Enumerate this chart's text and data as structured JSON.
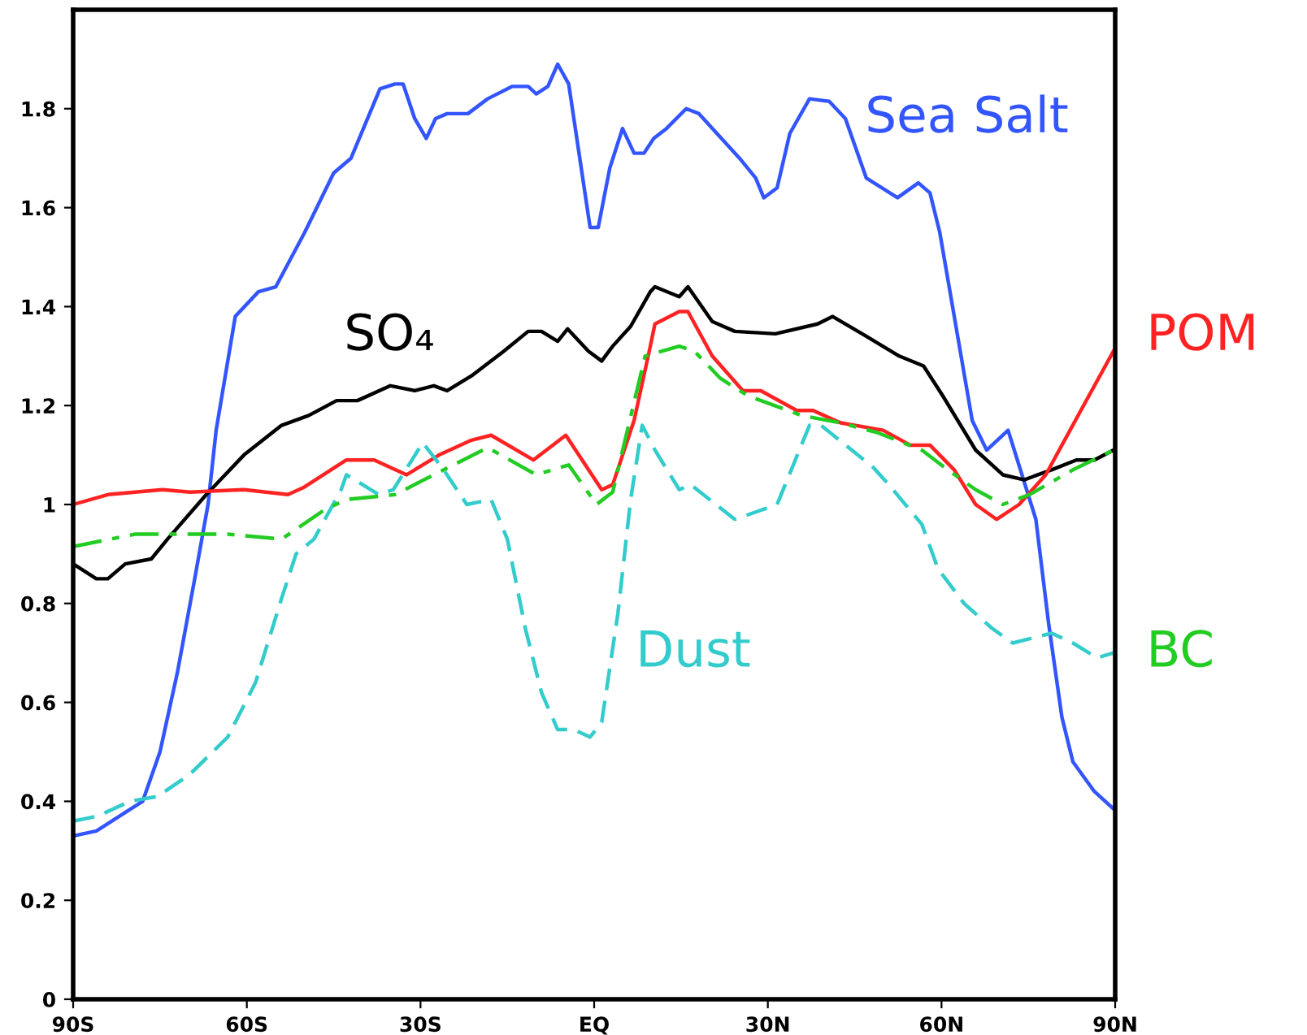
{
  "chart_data": {
    "type": "line",
    "xlim": [
      -90,
      90
    ],
    "ylim": [
      0,
      2
    ],
    "xticks": [
      {
        "value": -90,
        "label": "90S"
      },
      {
        "value": -60,
        "label": "60S"
      },
      {
        "value": -30,
        "label": "30S"
      },
      {
        "value": 0,
        "label": "EQ"
      },
      {
        "value": 30,
        "label": "30N"
      },
      {
        "value": 60,
        "label": "60N"
      },
      {
        "value": 90,
        "label": "90N"
      }
    ],
    "yticks": [
      0,
      0.2,
      0.4,
      0.6,
      0.8,
      1,
      1.2,
      1.4,
      1.6,
      1.8
    ],
    "grid": false,
    "legend": false,
    "series": [
      {
        "name": "Sea Salt",
        "color": "#3355ff",
        "line_style": "solid",
        "x": [
          -90,
          -86,
          -82,
          -78,
          -75,
          -72,
          -69,
          -66.7,
          -65.3,
          -62,
          -58,
          -55,
          -50,
          -45,
          -42,
          -37,
          -34.4,
          -33,
          -31,
          -29,
          -27.4,
          -25.4,
          -21.8,
          -18.4,
          -14.2,
          -11.4,
          -10,
          -8,
          -6.3,
          -4.4,
          -0.7,
          0.7,
          2.7,
          4.9,
          6.9,
          8.6,
          10.3,
          12.5,
          15.9,
          18.1,
          25.1,
          27.9,
          29.3,
          31.6,
          33.8,
          37.2,
          40.6,
          43.4,
          47,
          52.4,
          56,
          58,
          59.7,
          65.3,
          67.8,
          71.5,
          76.3,
          78.5,
          80.8,
          82.7,
          86.4,
          89.7
        ],
        "values": [
          0.33,
          0.34,
          0.37,
          0.4,
          0.5,
          0.66,
          0.85,
          1.0,
          1.15,
          1.38,
          1.43,
          1.44,
          1.55,
          1.67,
          1.7,
          1.84,
          1.85,
          1.85,
          1.78,
          1.74,
          1.78,
          1.79,
          1.79,
          1.82,
          1.845,
          1.845,
          1.83,
          1.845,
          1.89,
          1.85,
          1.56,
          1.56,
          1.68,
          1.76,
          1.71,
          1.71,
          1.74,
          1.76,
          1.8,
          1.79,
          1.7,
          1.66,
          1.62,
          1.64,
          1.75,
          1.82,
          1.815,
          1.78,
          1.66,
          1.62,
          1.65,
          1.63,
          1.55,
          1.17,
          1.11,
          1.15,
          0.97,
          0.76,
          0.57,
          0.48,
          0.42,
          0.385
        ]
      },
      {
        "name": "SO₄",
        "color": "#000000",
        "line_style": "solid",
        "x": [
          -90,
          -86,
          -84,
          -81,
          -76.5,
          -73.7,
          -67,
          -60.5,
          -54,
          -49.3,
          -44.5,
          -40.9,
          -35.2,
          -31,
          -27.7,
          -25.4,
          -21.2,
          -15.6,
          -11.4,
          -9.1,
          -6.3,
          -4.6,
          -1,
          1.3,
          3.2,
          6.3,
          9.7,
          10.5,
          14.7,
          16.2,
          20.4,
          24.3,
          31.3,
          38.6,
          41.2,
          47,
          52.7,
          56.9,
          60.2,
          65.9,
          70.6,
          74.3,
          79,
          83.3,
          86.4,
          89.7
        ],
        "values": [
          0.88,
          0.85,
          0.85,
          0.88,
          0.89,
          0.93,
          1.02,
          1.1,
          1.16,
          1.18,
          1.21,
          1.21,
          1.24,
          1.23,
          1.24,
          1.23,
          1.26,
          1.31,
          1.35,
          1.35,
          1.33,
          1.355,
          1.31,
          1.29,
          1.32,
          1.36,
          1.43,
          1.44,
          1.42,
          1.44,
          1.37,
          1.35,
          1.345,
          1.365,
          1.38,
          1.34,
          1.3,
          1.28,
          1.22,
          1.11,
          1.06,
          1.05,
          1.07,
          1.09,
          1.09,
          1.11
        ]
      },
      {
        "name": "POM",
        "color": "#ff2222",
        "line_style": "solid",
        "x": [
          -90,
          -84,
          -74.6,
          -69.8,
          -60.5,
          -52.9,
          -50.1,
          -42.8,
          -38,
          -32.4,
          -26.8,
          -21.2,
          -17.8,
          -10.5,
          -4.9,
          1.3,
          3.2,
          6.9,
          9.7,
          10.5,
          14.7,
          16.2,
          20.4,
          25.7,
          28.8,
          35,
          37.8,
          42.6,
          49.9,
          54.6,
          58,
          62.2,
          65.9,
          69.5,
          73.4,
          78,
          83.6,
          89.7
        ],
        "values": [
          1.0,
          1.02,
          1.03,
          1.025,
          1.03,
          1.02,
          1.035,
          1.09,
          1.09,
          1.06,
          1.1,
          1.13,
          1.14,
          1.09,
          1.14,
          1.03,
          1.04,
          1.17,
          1.32,
          1.365,
          1.39,
          1.39,
          1.3,
          1.23,
          1.23,
          1.19,
          1.19,
          1.165,
          1.15,
          1.12,
          1.12,
          1.07,
          1.0,
          0.97,
          1.0,
          1.06,
          1.18,
          1.31
        ]
      },
      {
        "name": "Dust",
        "color": "#33cccc",
        "line_style": "dashed",
        "x": [
          -90,
          -85.8,
          -80.2,
          -75.4,
          -69.8,
          -63.3,
          -58.5,
          -54,
          -51.5,
          -48.4,
          -43.7,
          -42.8,
          -37.2,
          -34.7,
          -29.6,
          -26,
          -22,
          -17.8,
          -15,
          -11.9,
          -9.1,
          -6.3,
          -3.5,
          -0.7,
          1.3,
          4.1,
          6.3,
          8.3,
          10.5,
          14.7,
          16.7,
          24.3,
          31.6,
          37.2,
          39.2,
          48.2,
          50.9,
          56.6,
          59.4,
          63.9,
          68.7,
          72.3,
          79,
          82.7,
          86.9,
          89.7
        ],
        "values": [
          0.36,
          0.37,
          0.4,
          0.41,
          0.455,
          0.53,
          0.64,
          0.81,
          0.9,
          0.93,
          1.03,
          1.06,
          1.02,
          1.03,
          1.125,
          1.07,
          1.0,
          1.01,
          0.93,
          0.75,
          0.62,
          0.545,
          0.545,
          0.53,
          0.56,
          0.78,
          1.01,
          1.16,
          1.11,
          1.03,
          1.04,
          0.97,
          1.0,
          1.16,
          1.16,
          1.075,
          1.04,
          0.96,
          0.87,
          0.8,
          0.75,
          0.72,
          0.74,
          0.72,
          0.69,
          0.7
        ]
      },
      {
        "name": "BC",
        "color": "#22cc22",
        "line_style": "dashdot",
        "x": [
          -90,
          -79.3,
          -63.3,
          -54,
          -46.5,
          -42.8,
          -34.4,
          -27.7,
          -18.4,
          -10,
          -4.4,
          0.4,
          3.2,
          8.8,
          14.7,
          17.3,
          21.8,
          26.5,
          35.8,
          42.6,
          49,
          56.6,
          61.1,
          65.9,
          70.6,
          75.2,
          82.7,
          89.7
        ],
        "values": [
          0.915,
          0.94,
          0.94,
          0.93,
          0.99,
          1.01,
          1.02,
          1.06,
          1.115,
          1.06,
          1.08,
          1.0,
          1.025,
          1.3,
          1.32,
          1.31,
          1.255,
          1.22,
          1.18,
          1.165,
          1.145,
          1.11,
          1.07,
          1.03,
          1.0,
          1.02,
          1.07,
          1.11
        ]
      }
    ]
  }
}
